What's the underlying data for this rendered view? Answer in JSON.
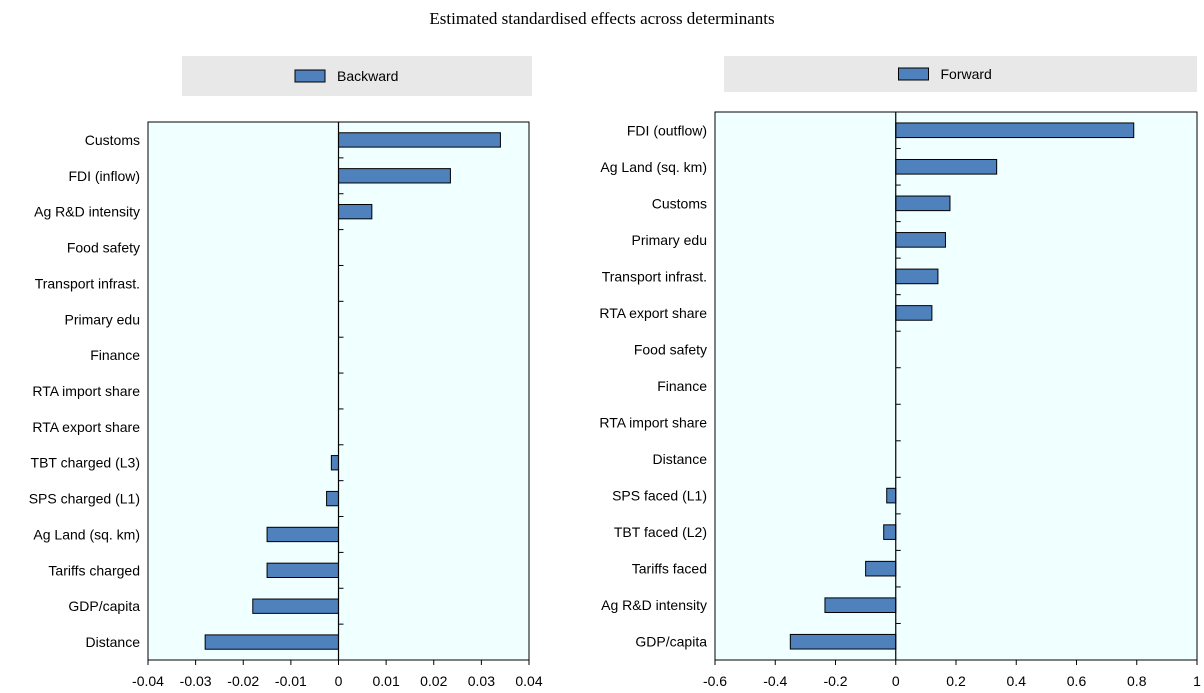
{
  "title": "Estimated standardised effects across determinants",
  "colors": {
    "bar_fill": "#4f81bd",
    "bar_stroke": "#000000",
    "plot_bg": "#f0ffff",
    "legend_bg": "#e8e8e8"
  },
  "chart_data": [
    {
      "type": "bar",
      "orientation": "horizontal",
      "legend": "Backward",
      "legend_position": "top",
      "grid": false,
      "categories": [
        "Customs",
        "FDI (inflow)",
        "Ag R&D intensity",
        "Food safety",
        "Transport infrast.",
        "Primary edu",
        "Finance",
        "RTA import share",
        "RTA export share",
        "TBT charged (L3)",
        "SPS charged (L1)",
        "Ag Land (sq. km)",
        "Tariffs charged",
        "GDP/capita",
        "Distance"
      ],
      "values": [
        0.034,
        0.0235,
        0.007,
        0,
        0,
        0,
        0,
        0,
        0,
        -0.0015,
        -0.0025,
        -0.015,
        -0.015,
        -0.018,
        -0.028
      ],
      "xlim": [
        -0.04,
        0.04
      ],
      "xticks": [
        "-0.04",
        "-0.03",
        "-0.02",
        "-0.01",
        "0",
        "0.01",
        "0.02",
        "0.03",
        "0.04"
      ]
    },
    {
      "type": "bar",
      "orientation": "horizontal",
      "legend": "Forward",
      "legend_position": "top",
      "grid": false,
      "categories": [
        "FDI (outflow)",
        "Ag Land (sq. km)",
        "Customs",
        "Primary edu",
        "Transport infrast.",
        "RTA export share",
        "Food safety",
        "Finance",
        "RTA import share",
        "Distance",
        "SPS faced (L1)",
        "TBT faced (L2)",
        "Tariffs faced",
        "Ag R&D intensity",
        "GDP/capita"
      ],
      "values": [
        0.79,
        0.335,
        0.18,
        0.165,
        0.14,
        0.12,
        0,
        0,
        0,
        0,
        -0.03,
        -0.04,
        -0.1,
        -0.235,
        -0.35
      ],
      "xlim": [
        -0.6,
        1.0
      ],
      "xticks": [
        "-0.6",
        "-0.4",
        "-0.2",
        "0",
        "0.2",
        "0.4",
        "0.6",
        "0.8",
        "1"
      ]
    }
  ]
}
